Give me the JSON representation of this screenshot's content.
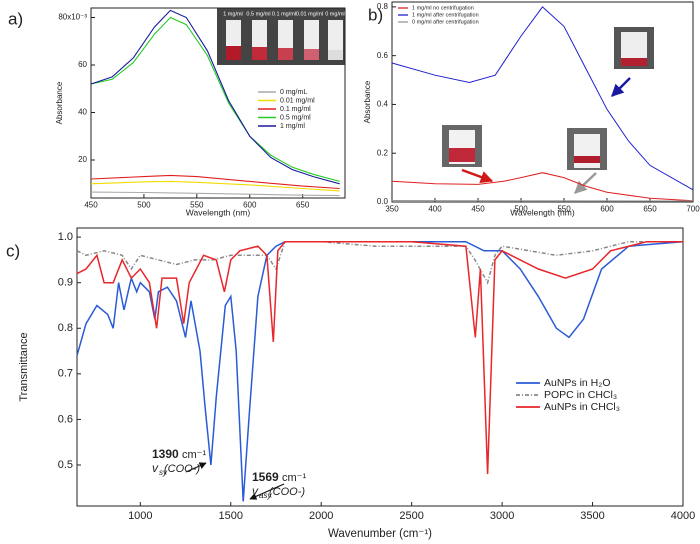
{
  "chart_data": [
    {
      "type": "line",
      "panel_label": "a)",
      "x_label": "Wavelength (nm)",
      "y_label": "Absorbance",
      "xlim": [
        450,
        690
      ],
      "xticks": [
        450,
        500,
        550,
        600,
        650
      ],
      "ylim": [
        4,
        84
      ],
      "yticks": [
        20,
        40,
        60,
        {
          "value": 80,
          "label": "80x10⁻³"
        }
      ],
      "inset_labels": [
        "1 mg/ml",
        "0.5 mg/ml",
        "0.1 mg/ml",
        "0.01 mg/ml",
        "0 mg/ml"
      ],
      "series": [
        {
          "name": "0 mg/mL",
          "color": "#aaaaaa",
          "x": [
            450,
            500,
            550,
            600,
            650,
            685
          ],
          "values": [
            6.5,
            6.3,
            6,
            5.6,
            5.2,
            5
          ]
        },
        {
          "name": "0.01 mg/ml",
          "color": "#f0dc00",
          "x": [
            450,
            500,
            525,
            550,
            600,
            650,
            685
          ],
          "values": [
            10,
            10.8,
            11,
            10.6,
            9.5,
            8,
            7
          ]
        },
        {
          "name": "0.1 mg/ml",
          "color": "#e02020",
          "x": [
            450,
            500,
            525,
            550,
            600,
            650,
            685
          ],
          "values": [
            12,
            13,
            13.5,
            13,
            11,
            9,
            8
          ]
        },
        {
          "name": "0.5 mg/ml",
          "color": "#22cc22",
          "x": [
            450,
            470,
            490,
            510,
            525,
            540,
            560,
            580,
            600,
            620,
            640,
            660,
            685
          ],
          "values": [
            52,
            54,
            61,
            73,
            80,
            77,
            64,
            44,
            30,
            22,
            17,
            14,
            11
          ]
        },
        {
          "name": "1 mg/ml",
          "color": "#1a1a9e",
          "x": [
            450,
            470,
            490,
            510,
            525,
            540,
            560,
            580,
            600,
            620,
            640,
            660,
            685
          ],
          "values": [
            52,
            55,
            63,
            76,
            83,
            80,
            66,
            45,
            30,
            21,
            16,
            13,
            10
          ]
        }
      ]
    },
    {
      "type": "line",
      "panel_label": "b)",
      "x_label": "Wavelength (nm)",
      "y_label": "Absorbance",
      "xlim": [
        350,
        700
      ],
      "xticks": [
        350,
        400,
        450,
        500,
        550,
        600,
        650,
        700
      ],
      "ylim": [
        0,
        0.82
      ],
      "yticks": [
        {
          "value": 0,
          "label": "0.0"
        },
        0.2,
        0.4,
        0.6,
        0.8
      ],
      "series": [
        {
          "name": "1 mg/ml no centrifugation",
          "color": "#e02020",
          "x": [
            350,
            400,
            450,
            480,
            500,
            525,
            550,
            575,
            600,
            650,
            700
          ],
          "values": [
            0.085,
            0.075,
            0.072,
            0.085,
            0.1,
            0.12,
            0.1,
            0.065,
            0.04,
            0.015,
            0.005
          ]
        },
        {
          "name": "1 mg/ml after centrifugation",
          "color": "#2020d0",
          "x": [
            350,
            400,
            440,
            470,
            500,
            525,
            550,
            575,
            600,
            625,
            650,
            700
          ],
          "values": [
            0.57,
            0.52,
            0.49,
            0.52,
            0.68,
            0.8,
            0.72,
            0.55,
            0.38,
            0.25,
            0.15,
            0.05
          ]
        },
        {
          "name": "0 mg/ml after centrifugation",
          "color": "#999999",
          "x": [
            350,
            500,
            700
          ],
          "values": [
            0.006,
            0.005,
            0.004
          ]
        }
      ]
    },
    {
      "type": "line",
      "panel_label": "c)",
      "x_label": "Wavenumber (cm⁻¹)",
      "y_label": "Transmittance",
      "xlim": [
        650,
        4000
      ],
      "xticks": [
        1000,
        1500,
        2000,
        2500,
        3000,
        3500,
        4000
      ],
      "ylim": [
        0.41,
        1.02
      ],
      "yticks": [
        0.5,
        0.6,
        0.7,
        0.8,
        0.9,
        {
          "value": 1,
          "label": "1.0"
        }
      ],
      "annotations": [
        {
          "number": "1390",
          "unit": "cm⁻¹",
          "symbol": "v",
          "subscript": "sy",
          "group": "(COO-)"
        },
        {
          "number": "1569",
          "unit": "cm⁻¹",
          "symbol": "v",
          "subscript": "asy",
          "group": "(COO-)"
        }
      ],
      "series": [
        {
          "name": "AuNPs in H₂O",
          "color": "#2a5bd7",
          "style": "solid",
          "x": [
            650,
            700,
            760,
            820,
            850,
            880,
            910,
            950,
            980,
            1000,
            1050,
            1080,
            1100,
            1150,
            1200,
            1250,
            1280,
            1330,
            1360,
            1390,
            1420,
            1470,
            1500,
            1530,
            1569,
            1600,
            1650,
            1700,
            1750,
            1800,
            2000,
            2500,
            2800,
            2900,
            3000,
            3100,
            3200,
            3300,
            3370,
            3450,
            3550,
            3700,
            4000
          ],
          "values": [
            0.74,
            0.81,
            0.85,
            0.83,
            0.8,
            0.9,
            0.84,
            0.91,
            0.88,
            0.9,
            0.88,
            0.82,
            0.88,
            0.89,
            0.86,
            0.78,
            0.86,
            0.75,
            0.62,
            0.5,
            0.65,
            0.85,
            0.87,
            0.75,
            0.42,
            0.6,
            0.87,
            0.96,
            0.98,
            0.99,
            0.99,
            0.99,
            0.99,
            0.97,
            0.97,
            0.93,
            0.87,
            0.8,
            0.78,
            0.82,
            0.93,
            0.98,
            0.99
          ]
        },
        {
          "name": "POPC in CHCl₃",
          "color": "#888888",
          "style": "dashdot",
          "x": [
            650,
            700,
            800,
            900,
            950,
            1000,
            1100,
            1200,
            1300,
            1400,
            1500,
            1700,
            1750,
            1800,
            2000,
            2300,
            2800,
            2850,
            2920,
            2960,
            3000,
            3300,
            3500,
            3700,
            4000
          ],
          "values": [
            0.97,
            0.96,
            0.97,
            0.96,
            0.93,
            0.96,
            0.95,
            0.94,
            0.95,
            0.95,
            0.96,
            0.96,
            0.93,
            0.99,
            0.99,
            0.98,
            0.98,
            0.95,
            0.9,
            0.96,
            0.98,
            0.96,
            0.97,
            0.99,
            0.99
          ]
        },
        {
          "name": "AuNPs in CHCl₃",
          "color": "#e8262b",
          "style": "solid",
          "x": [
            650,
            700,
            760,
            800,
            850,
            900,
            950,
            1000,
            1050,
            1090,
            1120,
            1200,
            1240,
            1270,
            1350,
            1420,
            1465,
            1500,
            1550,
            1650,
            1700,
            1735,
            1760,
            1800,
            2500,
            2800,
            2852,
            2880,
            2920,
            2960,
            3000,
            3100,
            3200,
            3350,
            3500,
            3600,
            3800,
            4000
          ],
          "values": [
            0.92,
            0.93,
            0.96,
            0.9,
            0.9,
            0.95,
            0.91,
            0.93,
            0.9,
            0.8,
            0.91,
            0.91,
            0.81,
            0.9,
            0.96,
            0.95,
            0.88,
            0.95,
            0.97,
            0.98,
            0.96,
            0.77,
            0.97,
            0.99,
            0.99,
            0.98,
            0.78,
            0.93,
            0.48,
            0.95,
            0.97,
            0.95,
            0.93,
            0.91,
            0.93,
            0.97,
            0.99,
            0.99
          ]
        }
      ]
    }
  ]
}
